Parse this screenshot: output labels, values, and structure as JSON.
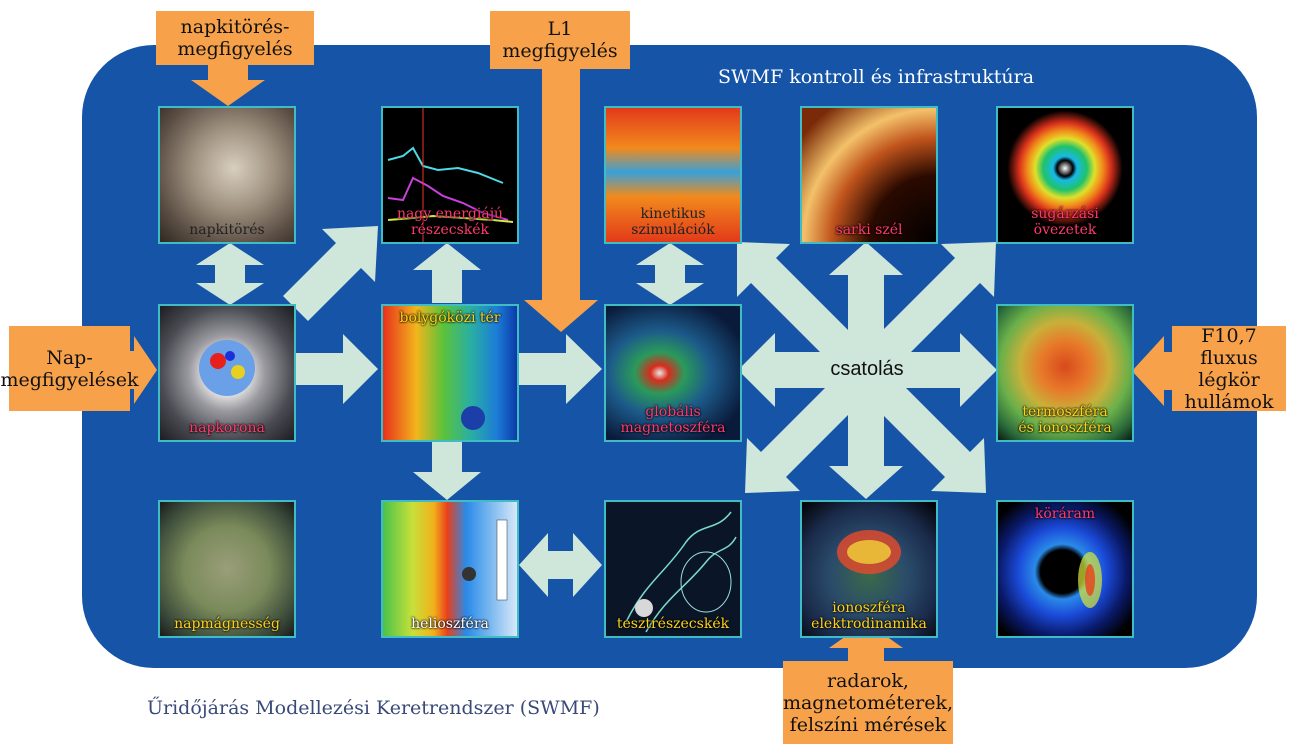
{
  "infrastructure_label": "SWMF kontroll és infrastruktúra",
  "coupling_label": "csatolás",
  "footer": "Űridőjárás Modellezési Keretrendszer (SWMF)",
  "observations": {
    "cme": [
      "napkitörés-",
      "megfigyelés"
    ],
    "l1": [
      "L1",
      "megfigyelés"
    ],
    "solar": [
      "Nap-",
      "megfigyelések"
    ],
    "f107": [
      "F10,7 fluxus",
      "légkör",
      "hullámok"
    ],
    "ground": [
      "radarok,",
      "magnetométerek,",
      "felszíni mérések"
    ]
  },
  "tiles": {
    "eruptive": [
      "napkitörés"
    ],
    "sep": [
      "nagy energiájú",
      "részecskék"
    ],
    "kinetic": [
      "kinetikus",
      "szimulációk"
    ],
    "polar_wind": [
      "sarki szél"
    ],
    "radiation_belts": [
      "sugárzási",
      "övezetek"
    ],
    "corona": [
      "napkorona"
    ],
    "inner_helio": [
      "bolygóközi tér"
    ],
    "magnetosphere": [
      "globális",
      "magnetoszféra"
    ],
    "thermosphere": [
      "termoszféra",
      "és ionoszféra"
    ],
    "solar_dynamo": [
      "napmágnesség"
    ],
    "heliosphere": [
      "helioszféra"
    ],
    "particles": [
      "tesztrészecskék"
    ],
    "iono_electro": [
      "ionoszféra",
      "elektrodinamika"
    ],
    "ring_current": [
      "köráram"
    ]
  },
  "colors": {
    "panel": "#1554a6",
    "arrow": "#cfe6da",
    "observation_arrow": "#f7a24a",
    "tile_border": "#3fbcc4"
  }
}
